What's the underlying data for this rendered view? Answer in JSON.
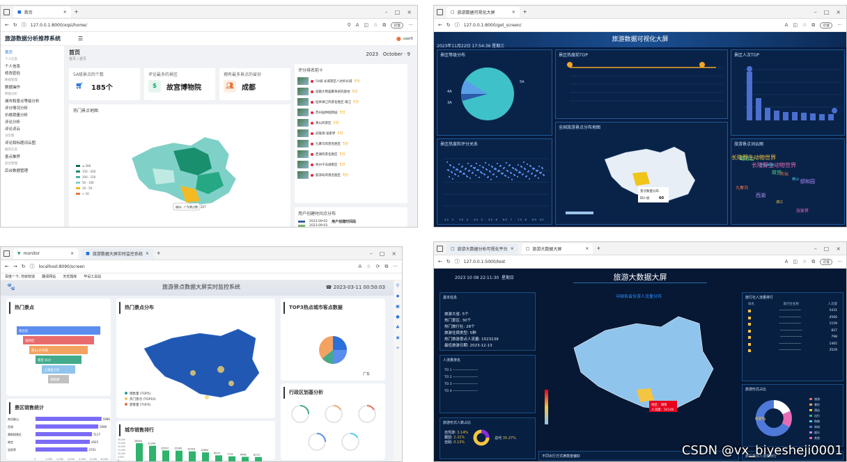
{
  "q1": {
    "tab_title": "首页",
    "url": "127.0.0.1:8000/xqsi/home/",
    "app_title": "旅游数据分析推荐系统",
    "user": "user5",
    "sidebar": [
      {
        "label": "首页",
        "active": true
      },
      {
        "label": "个人信息",
        "group": "个人信息"
      },
      {
        "label": "修改密码"
      },
      {
        "label": "数据操作",
        "group": "数据管理"
      },
      {
        "label": "城市和景点等级分析",
        "group": "数据分析"
      },
      {
        "label": "评分情况分析"
      },
      {
        "label": "价格销量分析"
      },
      {
        "label": "评论分析"
      },
      {
        "label": "评论词云"
      },
      {
        "label": "评论和标题词云图",
        "group": "词云图"
      },
      {
        "label": "景点推荐",
        "group": "推荐信息"
      },
      {
        "label": "后台数据管理",
        "group": "后台管理"
      }
    ],
    "page_title": "首页",
    "breadcrumb": "首页 / 首页",
    "date_year": "2023",
    "date_month": "October",
    "date_day": "9",
    "stats": [
      {
        "label": "5A级景点的个数",
        "value": "185个",
        "icon": "cart-icon",
        "color": "#1e6fd9"
      },
      {
        "label": "评论最多的景区",
        "value": "故宫博物院",
        "icon": "dollar-icon",
        "color": "#19a974"
      },
      {
        "label": "拥有最多景点的省份",
        "value": "成都",
        "icon": "people-icon",
        "color": "#e8743b"
      }
    ],
    "map_title": "热门景点地图",
    "map_tooltip": "福州、广东景点数：357",
    "map_legend": [
      "≥ 200",
      "150 - 200",
      "100 - 150",
      "50 - 100",
      "10 - 50",
      "< 10"
    ],
    "rank_title": "评分排名前十",
    "rank_rows": [
      {
        "name": "5A级·长城景区八达岭长城",
        "score": "5分"
      },
      {
        "name": "成都大熊猫繁育研究基地",
        "score": "5分"
      },
      {
        "name": "桂林漓江风景名胜区·漓江",
        "score": "5分"
      },
      {
        "name": "苏州园林拙政园",
        "score": "5分"
      },
      {
        "name": "黄山风景区",
        "score": "5分"
      },
      {
        "name": "武陵源·张家界",
        "score": "5分"
      },
      {
        "name": "九寨沟风景名胜区",
        "score": "5分"
      },
      {
        "name": "西湖风景名胜区",
        "score": "5分"
      },
      {
        "name": "杭州千岛湖景区",
        "score": "5分"
      },
      {
        "name": "鼓浪屿风景名胜区",
        "score": "5分"
      }
    ],
    "user_chart_title": "用户创建时间点分布",
    "user_table_header": "用户创建时间段",
    "user_rows": [
      "2023-09-02",
      "2023-09-03"
    ]
  },
  "q2": {
    "tab_title": "旅游数据可视化大屏",
    "url": "127.0.0.1:8000/get_screen/",
    "screen_title": "旅游数据可视化大屏",
    "datetime": "2023年11月22日 17:54:36 星期三",
    "panels": {
      "grade": "景区等级分布",
      "price_top": "景区热度前TOP",
      "people_top": "景区人次TOP",
      "map": "全国旅游景点分布地图",
      "scatter": "景区热度和评分关系",
      "wordcloud": "旅游景点词云图"
    },
    "pie_labels": [
      "5A",
      "4A",
      "3A"
    ],
    "map_tooltip_title": "景点数量分布",
    "map_tooltip_name": "四川省",
    "map_tooltip_value": "60",
    "wordcloud_words": [
      "长隆野生动物世界",
      "长隆野生动物世界",
      "故宫",
      "黄山",
      "九寨沟",
      "西湖",
      "漓江",
      "张家界",
      "峨眉山",
      "乐山大佛",
      "天坛",
      "颐和园"
    ],
    "scatter_x_ticks": [
      "2.5",
      "3",
      "3.5",
      "4",
      "4.5",
      "5",
      "5.5",
      "6",
      "6.5",
      "7",
      "7.5",
      "8",
      "8.5",
      "9.2"
    ]
  },
  "q3": {
    "tab_title": "monitor",
    "tab2_title": "旅游数据大屏实时监控系统",
    "url": "localhost:8090/screen",
    "bookmarks": [
      "百度一下, 你就知道",
      "翻译网站",
      "无忧题库",
      "毕设工具站"
    ],
    "screen_title": "旅游景点数据大屏实时监控系统",
    "datetime": "2023-03-11 00:50:03",
    "panels": {
      "hot": "热门景点",
      "map": "热门景点分布",
      "top3": "TOP3热点城市客点数据",
      "sales": "景区销售统计",
      "city_rank": "城市销售排行",
      "admin": "行政区划基分析"
    },
    "funnel_labels": [
      "南岳区",
      "淮阳区",
      "黑山·水帘洞",
      "景区·长沙",
      "上海迪士尼",
      "黄鹤楼"
    ],
    "sales_bars": [
      {
        "name": "南岳衡山",
        "value": "5986"
      },
      {
        "name": "西湖",
        "value": "5686"
      },
      {
        "name": "黄鹤楼景区",
        "value": "5117"
      },
      {
        "name": "故宫",
        "value": "4925"
      },
      {
        "name": "张家界",
        "value": "4701"
      }
    ],
    "sales_ticks": [
      "0",
      "1,000",
      "2,000",
      "3,000",
      "4,000",
      "5,000",
      "6,000"
    ],
    "city_rank_values": [
      "26004",
      "22344",
      "15557",
      "15309",
      "14316",
      "12804",
      "8574",
      "7131",
      "6462",
      "6175"
    ],
    "city_rank_labels": [
      "重庆",
      "",
      "",
      "苏州",
      "",
      "",
      "",
      "厦门",
      "",
      "青岛"
    ],
    "city_rank_yticks": [
      "30,000",
      "25,000",
      "20,000",
      "15,000",
      "10,000",
      "5,000",
      "0"
    ],
    "pie_caption": "广东",
    "map_legend": [
      "销售量 (TOP5)",
      "热门景点 (TOP10)",
      "游客量 (TOP3)"
    ]
  },
  "q4": {
    "tab1_title": "旅游大数据分析可视化平台",
    "tab2_title": "旅游大数据大屏",
    "url": "127.0.0.1:5000/test",
    "screen_title": "旅游大数据大屏",
    "datetime": "2023 10 08  22:11:30",
    "weekday": "星期日",
    "panels": {
      "basic": "基本信息",
      "people_rank": "人流量排名",
      "map_title": "中国各省份游人流量分布",
      "top_rank": "旅行社人流量排行",
      "trip_ratio": "旅游形式占比",
      "ratio1": "旅游形式人数占比",
      "ratio2": "不同出行方式满意度偏好",
      "rank2": "旅行景点人流量排行"
    },
    "basic_lines": [
      {
        "k": "旅游大省",
        "v": "5个"
      },
      {
        "k": "热门景区",
        "v": "30个"
      },
      {
        "k": "热门旅行社",
        "v": "28个"
      },
      {
        "k": "旅游住宿类型",
        "v": "5种"
      },
      {
        "k": "热门旅游景点人流量",
        "v": "1523139"
      },
      {
        "k": "最佳旅游日期",
        "v": "2023-12-13"
      }
    ],
    "rank_headers": [
      "排名",
      "旅行社名称",
      "人流量"
    ],
    "rank_values": [
      "5431",
      "4566",
      "1159",
      "827",
      "798",
      "1465",
      "3529"
    ],
    "map_tooltip": [
      "地区：湖南",
      "人流量：54146"
    ],
    "donut_value": "68%",
    "legend": [
      "旅游",
      "餐饮",
      "酒店",
      "出行",
      "购物",
      "休闲",
      "娱乐",
      "其他"
    ],
    "pct": [
      {
        "k": "自驾游",
        "v": "3.14%"
      },
      {
        "k": "跟团",
        "v": "2.21%"
      },
      {
        "k": "自助",
        "v": "0.13%"
      }
    ],
    "total_label": "总代",
    "total_value": "35.27%"
  },
  "watermark": "CSDN @vx_biyesheji0001"
}
